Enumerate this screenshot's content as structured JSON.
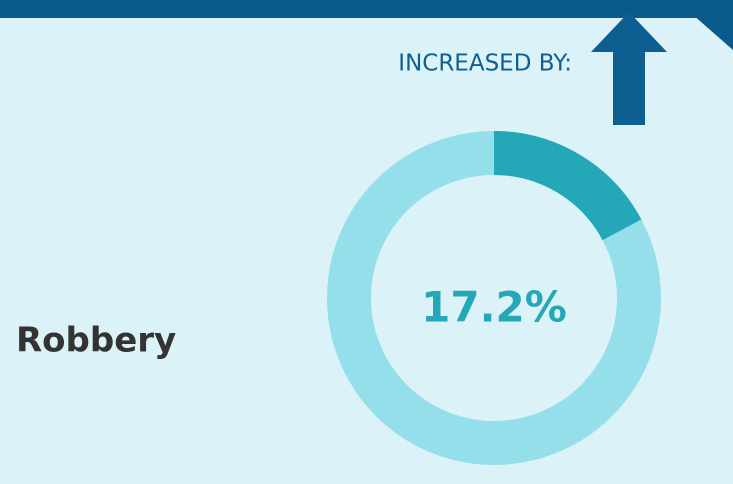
{
  "chart_data": {
    "type": "donut",
    "heading": "INCREASED BY:",
    "categories": [
      "Robbery"
    ],
    "values": [
      17.2
    ],
    "value_labels": [
      "17.2%"
    ],
    "color": "#24a7b6",
    "ring_color": "#94dfe9"
  }
}
